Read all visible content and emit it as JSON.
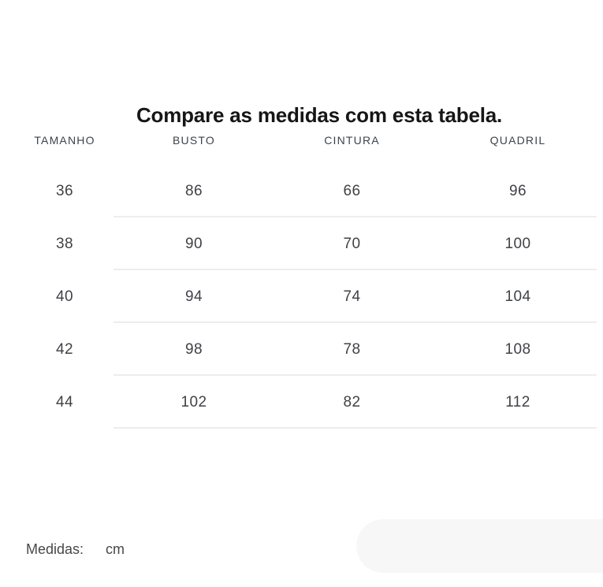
{
  "title": "Compare as medidas com esta tabela.",
  "table": {
    "columns": [
      "TAMANHO",
      "BUSTO",
      "CINTURA",
      "QUADRIL"
    ],
    "rows": [
      [
        "36",
        "86",
        "66",
        "96"
      ],
      [
        "38",
        "90",
        "70",
        "100"
      ],
      [
        "40",
        "94",
        "74",
        "104"
      ],
      [
        "42",
        "98",
        "78",
        "108"
      ],
      [
        "44",
        "102",
        "82",
        "112"
      ]
    ]
  },
  "footer": {
    "label": "Medidas:",
    "unit": "cm"
  },
  "colors": {
    "title": "#161616",
    "header_text": "#3c434c",
    "cell_text": "#3f4247",
    "footer_text": "#47484a",
    "divider": "#ededed",
    "pill": "#f7f7f7",
    "background": "#ffffff"
  }
}
